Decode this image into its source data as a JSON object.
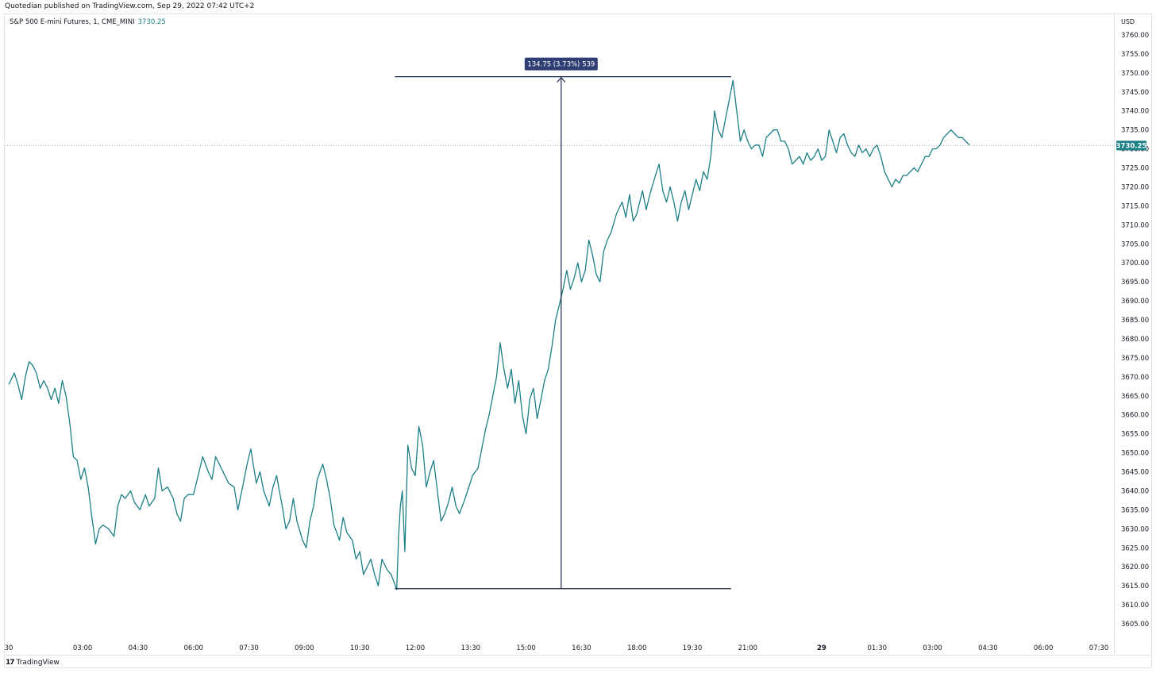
{
  "header": {
    "published": "Quotedian published on TradingView.com, Sep 29, 2022 07:42 UTC+2"
  },
  "symbol": {
    "title": "S&P 500 E-mini Futures, 1, CME_MINI",
    "last": "3730.25"
  },
  "footer": {
    "brand": "TradingView",
    "brand_icon": "tradingview-logo-icon"
  },
  "colors": {
    "line": "#1b7f86",
    "measure": "#1e2a4a",
    "label_bg": "#2f3f73",
    "price_tag_bg": "#1b7f86",
    "grid_text": "#131722"
  },
  "chart_data": {
    "type": "line",
    "title": "S&P 500 E-mini Futures, 1, CME_MINI",
    "currency": "USD",
    "ylim": [
      3602,
      3766
    ],
    "y_ticks": [
      "3760.00",
      "3755.00",
      "3750.00",
      "3745.00",
      "3740.00",
      "3735.00",
      "3730.00",
      "3725.00",
      "3720.00",
      "3715.00",
      "3710.00",
      "3705.00",
      "3700.00",
      "3695.00",
      "3690.00",
      "3685.00",
      "3680.00",
      "3675.00",
      "3670.00",
      "3665.00",
      "3660.00",
      "3655.00",
      "3650.00",
      "3645.00",
      "3640.00",
      "3635.00",
      "3630.00",
      "3625.00",
      "3620.00",
      "3615.00",
      "3610.00",
      "3605.00"
    ],
    "x_ticks": [
      {
        "label": "30",
        "t": 1.0
      },
      {
        "label": "03:00",
        "t": 3.0
      },
      {
        "label": "04:30",
        "t": 4.5
      },
      {
        "label": "06:00",
        "t": 6.0
      },
      {
        "label": "07:30",
        "t": 7.5
      },
      {
        "label": "09:00",
        "t": 9.0
      },
      {
        "label": "10:30",
        "t": 10.5
      },
      {
        "label": "12:00",
        "t": 12.0
      },
      {
        "label": "13:30",
        "t": 13.5
      },
      {
        "label": "15:00",
        "t": 15.0
      },
      {
        "label": "16:30",
        "t": 16.5
      },
      {
        "label": "18:00",
        "t": 18.0
      },
      {
        "label": "19:30",
        "t": 19.5
      },
      {
        "label": "21:00",
        "t": 21.0
      },
      {
        "label": "29",
        "t": 23.0,
        "bold": true
      },
      {
        "label": "01:30",
        "t": 24.5
      },
      {
        "label": "03:00",
        "t": 26.0
      },
      {
        "label": "04:30",
        "t": 27.5
      },
      {
        "label": "06:00",
        "t": 29.0
      },
      {
        "label": "07:30",
        "t": 30.5
      }
    ],
    "last_price": 3730.25,
    "last_price_label": "3730.25",
    "series": [
      {
        "values": [
          [
            1.0,
            3668
          ],
          [
            1.15,
            3671
          ],
          [
            1.25,
            3668
          ],
          [
            1.35,
            3664
          ],
          [
            1.45,
            3670
          ],
          [
            1.55,
            3674
          ],
          [
            1.65,
            3673
          ],
          [
            1.75,
            3671
          ],
          [
            1.85,
            3667
          ],
          [
            1.95,
            3669
          ],
          [
            2.05,
            3667
          ],
          [
            2.15,
            3664
          ],
          [
            2.25,
            3667
          ],
          [
            2.35,
            3663
          ],
          [
            2.45,
            3669
          ],
          [
            2.55,
            3665
          ],
          [
            2.65,
            3658
          ],
          [
            2.75,
            3649
          ],
          [
            2.85,
            3648
          ],
          [
            2.95,
            3643
          ],
          [
            3.05,
            3646
          ],
          [
            3.15,
            3641
          ],
          [
            3.25,
            3633
          ],
          [
            3.35,
            3626
          ],
          [
            3.45,
            3630
          ],
          [
            3.55,
            3631
          ],
          [
            3.7,
            3630
          ],
          [
            3.85,
            3628
          ],
          [
            3.95,
            3636
          ],
          [
            4.05,
            3639
          ],
          [
            4.15,
            3638
          ],
          [
            4.3,
            3640
          ],
          [
            4.4,
            3637
          ],
          [
            4.55,
            3635
          ],
          [
            4.7,
            3639
          ],
          [
            4.8,
            3636
          ],
          [
            4.95,
            3638
          ],
          [
            5.05,
            3646
          ],
          [
            5.15,
            3640
          ],
          [
            5.3,
            3641
          ],
          [
            5.45,
            3638
          ],
          [
            5.55,
            3634
          ],
          [
            5.65,
            3632
          ],
          [
            5.75,
            3638
          ],
          [
            5.85,
            3639
          ],
          [
            6.0,
            3639
          ],
          [
            6.1,
            3643
          ],
          [
            6.25,
            3649
          ],
          [
            6.4,
            3645
          ],
          [
            6.5,
            3643
          ],
          [
            6.6,
            3649
          ],
          [
            6.75,
            3646
          ],
          [
            6.85,
            3644
          ],
          [
            6.95,
            3642
          ],
          [
            7.1,
            3641
          ],
          [
            7.2,
            3635
          ],
          [
            7.35,
            3642
          ],
          [
            7.45,
            3647
          ],
          [
            7.55,
            3651
          ],
          [
            7.7,
            3642
          ],
          [
            7.8,
            3645
          ],
          [
            7.9,
            3640
          ],
          [
            8.05,
            3636
          ],
          [
            8.15,
            3641
          ],
          [
            8.25,
            3644
          ],
          [
            8.4,
            3636
          ],
          [
            8.5,
            3630
          ],
          [
            8.6,
            3632
          ],
          [
            8.7,
            3638
          ],
          [
            8.8,
            3632
          ],
          [
            8.95,
            3627
          ],
          [
            9.05,
            3625
          ],
          [
            9.15,
            3632
          ],
          [
            9.25,
            3636
          ],
          [
            9.35,
            3643
          ],
          [
            9.5,
            3647
          ],
          [
            9.6,
            3643
          ],
          [
            9.7,
            3638
          ],
          [
            9.8,
            3631
          ],
          [
            9.95,
            3627
          ],
          [
            10.05,
            3633
          ],
          [
            10.15,
            3629
          ],
          [
            10.3,
            3627
          ],
          [
            10.4,
            3622
          ],
          [
            10.5,
            3624
          ],
          [
            10.6,
            3618
          ],
          [
            10.7,
            3620
          ],
          [
            10.8,
            3622
          ],
          [
            10.9,
            3618
          ],
          [
            11.0,
            3615
          ],
          [
            11.1,
            3622
          ],
          [
            11.25,
            3619
          ],
          [
            11.35,
            3618
          ],
          [
            11.5,
            3614
          ],
          [
            11.55,
            3628
          ],
          [
            11.6,
            3636
          ],
          [
            11.65,
            3640
          ],
          [
            11.72,
            3624
          ],
          [
            11.8,
            3652
          ],
          [
            11.9,
            3646
          ],
          [
            12.0,
            3644
          ],
          [
            12.1,
            3657
          ],
          [
            12.2,
            3652
          ],
          [
            12.3,
            3641
          ],
          [
            12.4,
            3645
          ],
          [
            12.5,
            3648
          ],
          [
            12.6,
            3640
          ],
          [
            12.7,
            3632
          ],
          [
            12.8,
            3634
          ],
          [
            12.9,
            3637
          ],
          [
            13.0,
            3641
          ],
          [
            13.1,
            3636
          ],
          [
            13.2,
            3634
          ],
          [
            13.35,
            3638
          ],
          [
            13.45,
            3641
          ],
          [
            13.55,
            3644
          ],
          [
            13.7,
            3646
          ],
          [
            13.8,
            3651
          ],
          [
            13.9,
            3656
          ],
          [
            14.0,
            3660
          ],
          [
            14.1,
            3665
          ],
          [
            14.2,
            3670
          ],
          [
            14.3,
            3679
          ],
          [
            14.4,
            3672
          ],
          [
            14.5,
            3667
          ],
          [
            14.6,
            3672
          ],
          [
            14.7,
            3663
          ],
          [
            14.8,
            3669
          ],
          [
            14.9,
            3660
          ],
          [
            15.0,
            3655
          ],
          [
            15.1,
            3664
          ],
          [
            15.2,
            3667
          ],
          [
            15.3,
            3659
          ],
          [
            15.4,
            3664
          ],
          [
            15.5,
            3669
          ],
          [
            15.6,
            3672
          ],
          [
            15.7,
            3678
          ],
          [
            15.8,
            3685
          ],
          [
            15.9,
            3689
          ],
          [
            16.0,
            3693
          ],
          [
            16.1,
            3698
          ],
          [
            16.2,
            3693
          ],
          [
            16.3,
            3696
          ],
          [
            16.4,
            3700
          ],
          [
            16.5,
            3695
          ],
          [
            16.6,
            3698
          ],
          [
            16.7,
            3706
          ],
          [
            16.8,
            3702
          ],
          [
            16.9,
            3697
          ],
          [
            17.0,
            3695
          ],
          [
            17.1,
            3703
          ],
          [
            17.2,
            3706
          ],
          [
            17.3,
            3708
          ],
          [
            17.45,
            3713
          ],
          [
            17.6,
            3716
          ],
          [
            17.7,
            3712
          ],
          [
            17.8,
            3718
          ],
          [
            17.9,
            3711
          ],
          [
            18.0,
            3713
          ],
          [
            18.15,
            3719
          ],
          [
            18.25,
            3714
          ],
          [
            18.35,
            3718
          ],
          [
            18.5,
            3723
          ],
          [
            18.6,
            3726
          ],
          [
            18.7,
            3719
          ],
          [
            18.8,
            3716
          ],
          [
            18.9,
            3720
          ],
          [
            19.0,
            3716
          ],
          [
            19.1,
            3711
          ],
          [
            19.2,
            3716
          ],
          [
            19.3,
            3719
          ],
          [
            19.4,
            3714
          ],
          [
            19.5,
            3718
          ],
          [
            19.6,
            3722
          ],
          [
            19.7,
            3719
          ],
          [
            19.8,
            3724
          ],
          [
            19.9,
            3722
          ],
          [
            20.0,
            3728
          ],
          [
            20.1,
            3740
          ],
          [
            20.2,
            3735
          ],
          [
            20.3,
            3733
          ],
          [
            20.4,
            3738
          ],
          [
            20.5,
            3743
          ],
          [
            20.6,
            3748
          ],
          [
            20.65,
            3744
          ],
          [
            20.7,
            3740
          ],
          [
            20.8,
            3732
          ],
          [
            20.9,
            3735
          ],
          [
            21.0,
            3732
          ],
          [
            21.1,
            3730
          ],
          [
            21.2,
            3731
          ],
          [
            21.3,
            3731
          ],
          [
            21.4,
            3728
          ],
          [
            21.5,
            3733
          ],
          [
            21.6,
            3734
          ],
          [
            21.7,
            3735
          ],
          [
            21.8,
            3735
          ],
          [
            21.9,
            3732
          ],
          [
            22.0,
            3732
          ],
          [
            22.1,
            3730
          ],
          [
            22.2,
            3726
          ],
          [
            22.3,
            3727
          ],
          [
            22.4,
            3728
          ],
          [
            22.5,
            3726
          ],
          [
            22.6,
            3729
          ],
          [
            22.7,
            3727
          ],
          [
            22.8,
            3728
          ],
          [
            22.9,
            3730
          ],
          [
            23.0,
            3727
          ],
          [
            23.1,
            3728
          ],
          [
            23.2,
            3735
          ],
          [
            23.3,
            3732
          ],
          [
            23.4,
            3729
          ],
          [
            23.5,
            3733
          ],
          [
            23.6,
            3734
          ],
          [
            23.7,
            3731
          ],
          [
            23.8,
            3729
          ],
          [
            23.9,
            3728
          ],
          [
            24.0,
            3731
          ],
          [
            24.1,
            3729
          ],
          [
            24.2,
            3730
          ],
          [
            24.3,
            3728
          ],
          [
            24.4,
            3730
          ],
          [
            24.5,
            3731
          ],
          [
            24.6,
            3728
          ],
          [
            24.7,
            3724
          ],
          [
            24.8,
            3722
          ],
          [
            24.9,
            3720
          ],
          [
            25.0,
            3722
          ],
          [
            25.1,
            3721
          ],
          [
            25.2,
            3723
          ],
          [
            25.3,
            3723
          ],
          [
            25.4,
            3724
          ],
          [
            25.5,
            3725
          ],
          [
            25.6,
            3724
          ],
          [
            25.7,
            3726
          ],
          [
            25.8,
            3728
          ],
          [
            25.9,
            3728
          ],
          [
            26.0,
            3730
          ],
          [
            26.1,
            3730
          ],
          [
            26.2,
            3731
          ],
          [
            26.3,
            3733
          ],
          [
            26.4,
            3734
          ],
          [
            26.5,
            3735
          ],
          [
            26.6,
            3734
          ],
          [
            26.7,
            3733
          ],
          [
            26.8,
            3733
          ],
          [
            26.9,
            3732
          ],
          [
            27.0,
            3731
          ]
        ]
      }
    ],
    "measure": {
      "from_t": 11.45,
      "to_t": 20.55,
      "low": 3614.25,
      "high": 3749.0,
      "arrow_t": 15.95,
      "label": "134.75 (3.73%) 539"
    }
  }
}
